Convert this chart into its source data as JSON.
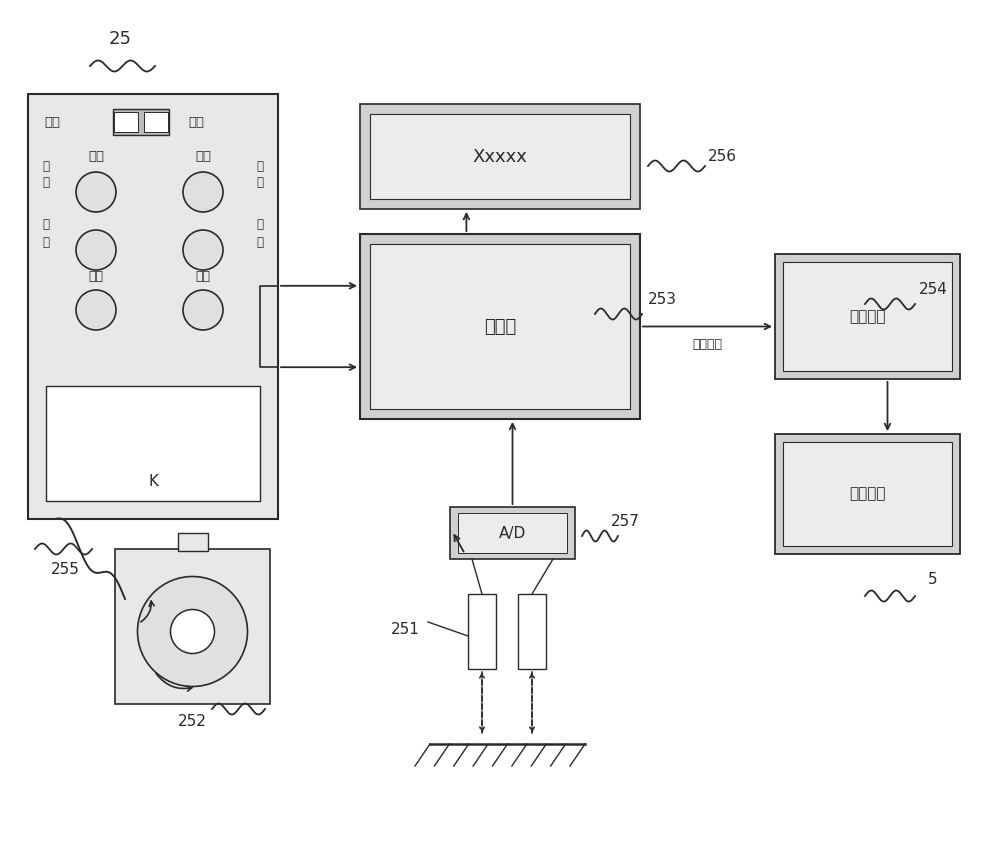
{
  "bg_color": "#ffffff",
  "lc": "#2a2a2a",
  "fill_gray": "#d0d0d0",
  "fill_light": "#e8e8e8",
  "label_25": "25",
  "label_256": "256",
  "label_253": "253",
  "label_254": "254",
  "label_255": "255",
  "label_252": "252",
  "label_251": "251",
  "label_257": "257",
  "label_5": "5",
  "text_auto": "自动",
  "text_manual": "手动",
  "text_coarse": "粗调",
  "text_fine": "细调",
  "text_up1": "上",
  "text_rise1": "升",
  "text_down1": "下",
  "text_drop1": "降",
  "text_up2": "上",
  "text_rise2": "升",
  "text_down2": "下",
  "text_drop2": "降",
  "text_start": "启动",
  "text_stop": "停止",
  "text_K": "K",
  "text_xxxxx": "Xxxxx",
  "text_controller": "控制器",
  "text_control_signal": "控制信号",
  "text_drive": "驱动机构",
  "text_execute": "执行机构",
  "text_AD": "A/D"
}
